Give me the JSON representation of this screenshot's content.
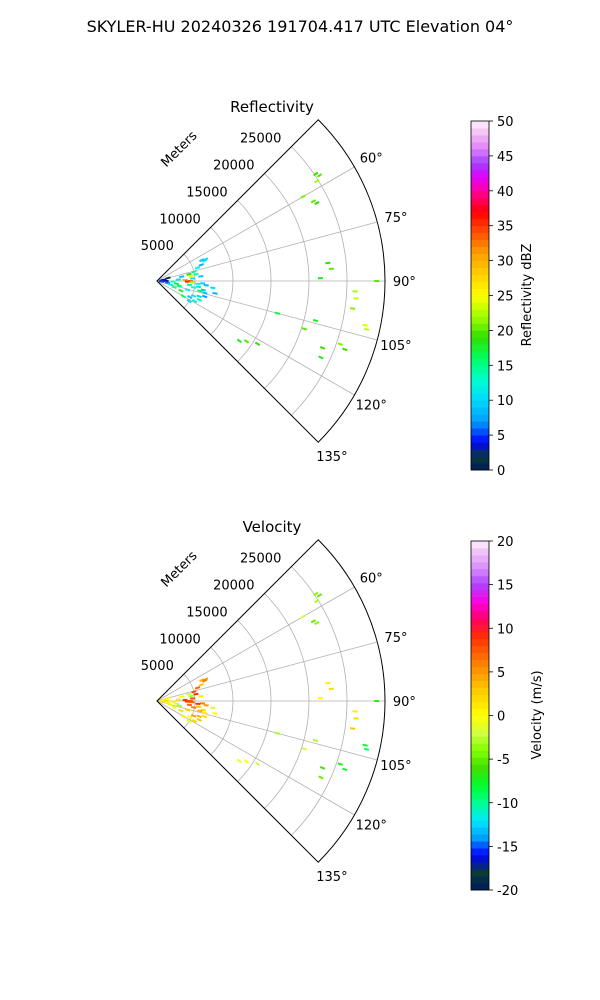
{
  "suptitle": "SKYLER-HU  20240326  191704.417 UTC Elevation 04°",
  "chart_data": [
    {
      "type": "polar-sector",
      "title": "Reflectivity",
      "range_label": "Meters",
      "range_ticks": [
        5000,
        10000,
        15000,
        20000,
        25000
      ],
      "range_max": 30000,
      "azimuth_range_deg": [
        45,
        135
      ],
      "azimuth_ticks": [
        "60°",
        "75°",
        "90°",
        "105°",
        "120°",
        "135°"
      ],
      "grid": true,
      "colorbar": {
        "label": "Reflectivity dBZ",
        "min": 0,
        "max": 50,
        "ticks": [
          0,
          5,
          10,
          15,
          20,
          25,
          30,
          35,
          40,
          45,
          50
        ],
        "stops": [
          {
            "v": 0,
            "c": "#001a5c"
          },
          {
            "v": 2,
            "c": "#0a3a3a"
          },
          {
            "v": 4,
            "c": "#0000ff"
          },
          {
            "v": 7,
            "c": "#00a0ff"
          },
          {
            "v": 10,
            "c": "#00d8ff"
          },
          {
            "v": 13,
            "c": "#00ffd0"
          },
          {
            "v": 16,
            "c": "#00ff60"
          },
          {
            "v": 19,
            "c": "#30e000"
          },
          {
            "v": 22,
            "c": "#a0ff00"
          },
          {
            "v": 25,
            "c": "#ffff00"
          },
          {
            "v": 28,
            "c": "#ffd000"
          },
          {
            "v": 31,
            "c": "#ffa000"
          },
          {
            "v": 34,
            "c": "#ff5000"
          },
          {
            "v": 37,
            "c": "#ff0000"
          },
          {
            "v": 40,
            "c": "#ff00a0"
          },
          {
            "v": 42,
            "c": "#e000ff"
          },
          {
            "v": 44,
            "c": "#a040ff"
          },
          {
            "v": 46,
            "c": "#e080ff"
          },
          {
            "v": 48,
            "c": "#f0b8f0"
          },
          {
            "v": 50,
            "c": "#fff0ff"
          }
        ]
      },
      "points": [
        {
          "az": 56,
          "r": 25200,
          "v": 19
        },
        {
          "az": 57,
          "r": 25500,
          "v": 20
        },
        {
          "az": 58,
          "r": 24800,
          "v": 22
        },
        {
          "az": 63,
          "r": 23100,
          "v": 20
        },
        {
          "az": 64,
          "r": 23400,
          "v": 19
        },
        {
          "az": 60,
          "r": 22200,
          "v": 21
        },
        {
          "az": 84,
          "r": 22600,
          "v": 19
        },
        {
          "az": 86,
          "r": 23000,
          "v": 20
        },
        {
          "az": 89,
          "r": 21500,
          "v": 18
        },
        {
          "az": 93,
          "r": 26100,
          "v": 22
        },
        {
          "az": 95,
          "r": 26300,
          "v": 23
        },
        {
          "az": 98,
          "r": 26000,
          "v": 21
        },
        {
          "az": 102,
          "r": 28000,
          "v": 24
        },
        {
          "az": 103,
          "r": 28300,
          "v": 23
        },
        {
          "az": 90,
          "r": 28900,
          "v": 20
        },
        {
          "az": 104,
          "r": 21500,
          "v": 18
        },
        {
          "az": 108,
          "r": 20400,
          "v": 20
        },
        {
          "az": 112,
          "r": 23500,
          "v": 19
        },
        {
          "az": 115,
          "r": 23800,
          "v": 18
        },
        {
          "az": 109,
          "r": 25500,
          "v": 21
        },
        {
          "az": 110,
          "r": 26300,
          "v": 19
        },
        {
          "az": 105,
          "r": 16400,
          "v": 17
        },
        {
          "az": 122,
          "r": 15600,
          "v": 19
        },
        {
          "az": 124,
          "r": 14200,
          "v": 20
        },
        {
          "az": 126,
          "r": 13400,
          "v": 18
        },
        {
          "az": 65,
          "r": 6500,
          "v": 9
        },
        {
          "az": 66,
          "r": 7000,
          "v": 10
        },
        {
          "az": 67,
          "r": 6800,
          "v": 11
        },
        {
          "az": 70,
          "r": 6200,
          "v": 8
        },
        {
          "az": 72,
          "r": 5600,
          "v": 12
        },
        {
          "az": 76,
          "r": 5000,
          "v": 15
        },
        {
          "az": 78,
          "r": 4300,
          "v": 19
        },
        {
          "az": 80,
          "r": 5200,
          "v": 14
        },
        {
          "az": 82,
          "r": 4500,
          "v": 24
        },
        {
          "az": 84,
          "r": 5800,
          "v": 9
        },
        {
          "az": 86,
          "r": 4700,
          "v": 11
        },
        {
          "az": 88,
          "r": 3700,
          "v": 30
        },
        {
          "az": 90,
          "r": 4400,
          "v": 33
        },
        {
          "az": 91,
          "r": 4000,
          "v": 36
        },
        {
          "az": 92,
          "r": 4600,
          "v": 22
        },
        {
          "az": 93,
          "r": 6000,
          "v": 10
        },
        {
          "az": 94,
          "r": 5400,
          "v": 12
        },
        {
          "az": 95,
          "r": 6500,
          "v": 8
        },
        {
          "az": 97,
          "r": 4300,
          "v": 15
        },
        {
          "az": 98,
          "r": 5500,
          "v": 11
        },
        {
          "az": 100,
          "r": 4900,
          "v": 13
        },
        {
          "az": 101,
          "r": 6200,
          "v": 9
        },
        {
          "az": 103,
          "r": 5800,
          "v": 17
        },
        {
          "az": 104,
          "r": 6500,
          "v": 9
        },
        {
          "az": 106,
          "r": 4200,
          "v": 12
        },
        {
          "az": 108,
          "r": 6600,
          "v": 7
        },
        {
          "az": 110,
          "r": 5900,
          "v": 10
        },
        {
          "az": 112,
          "r": 5200,
          "v": 11
        },
        {
          "az": 114,
          "r": 6100,
          "v": 14
        },
        {
          "az": 116,
          "r": 4800,
          "v": 9
        },
        {
          "az": 118,
          "r": 5600,
          "v": 12
        },
        {
          "az": 120,
          "r": 4000,
          "v": 16
        },
        {
          "az": 122,
          "r": 5000,
          "v": 10
        },
        {
          "az": 102,
          "r": 7800,
          "v": 8
        },
        {
          "az": 97,
          "r": 7400,
          "v": 10
        },
        {
          "az": 75,
          "r": 1500,
          "v": 2
        },
        {
          "az": 80,
          "r": 900,
          "v": 4
        },
        {
          "az": 85,
          "r": 700,
          "v": 1
        },
        {
          "az": 90,
          "r": 1200,
          "v": 3
        },
        {
          "az": 95,
          "r": 600,
          "v": 5
        },
        {
          "az": 100,
          "r": 1400,
          "v": 6
        },
        {
          "az": 105,
          "r": 1800,
          "v": 12
        },
        {
          "az": 110,
          "r": 2400,
          "v": 14
        },
        {
          "az": 98,
          "r": 2600,
          "v": 17
        },
        {
          "az": 92,
          "r": 2100,
          "v": 13
        },
        {
          "az": 112,
          "r": 3400,
          "v": 18
        },
        {
          "az": 102,
          "r": 3000,
          "v": 15
        },
        {
          "az": 86,
          "r": 2800,
          "v": 11
        },
        {
          "az": 80,
          "r": 3300,
          "v": 9
        }
      ]
    },
    {
      "type": "polar-sector",
      "title": "Velocity",
      "range_label": "Meters",
      "range_ticks": [
        5000,
        10000,
        15000,
        20000,
        25000
      ],
      "range_max": 30000,
      "azimuth_range_deg": [
        45,
        135
      ],
      "azimuth_ticks": [
        "60°",
        "75°",
        "90°",
        "105°",
        "120°",
        "135°"
      ],
      "grid": true,
      "colorbar": {
        "label": "Velocity (m/s)",
        "min": -20,
        "max": 20,
        "ticks": [
          -20,
          -15,
          -10,
          -5,
          0,
          5,
          10,
          15,
          20
        ],
        "stops": [
          {
            "v": -20,
            "c": "#001a5c"
          },
          {
            "v": -18,
            "c": "#0a3a3a"
          },
          {
            "v": -16,
            "c": "#0000ff"
          },
          {
            "v": -14,
            "c": "#00a0ff"
          },
          {
            "v": -12,
            "c": "#00e8ff"
          },
          {
            "v": -10,
            "c": "#00ff90"
          },
          {
            "v": -8,
            "c": "#00ff30"
          },
          {
            "v": -6,
            "c": "#40e000"
          },
          {
            "v": -4,
            "c": "#80ff00"
          },
          {
            "v": -2,
            "c": "#d0ff40"
          },
          {
            "v": 0,
            "c": "#ffff00"
          },
          {
            "v": 3,
            "c": "#ffc800"
          },
          {
            "v": 6,
            "c": "#ff8000"
          },
          {
            "v": 9,
            "c": "#ff3000"
          },
          {
            "v": 11,
            "c": "#ff0060"
          },
          {
            "v": 13,
            "c": "#ff00e0"
          },
          {
            "v": 15,
            "c": "#b040ff"
          },
          {
            "v": 17,
            "c": "#d890ff"
          },
          {
            "v": 19,
            "c": "#f4c8f4"
          },
          {
            "v": 20,
            "c": "#fff0ff"
          }
        ]
      },
      "points": [
        {
          "az": 56,
          "r": 25200,
          "v": -4
        },
        {
          "az": 57,
          "r": 25500,
          "v": -5
        },
        {
          "az": 58,
          "r": 24800,
          "v": -3
        },
        {
          "az": 63,
          "r": 23100,
          "v": -5
        },
        {
          "az": 64,
          "r": 23400,
          "v": -4
        },
        {
          "az": 60,
          "r": 22200,
          "v": -2
        },
        {
          "az": 84,
          "r": 22600,
          "v": 1
        },
        {
          "az": 86,
          "r": 23000,
          "v": 2
        },
        {
          "az": 89,
          "r": 21500,
          "v": 0
        },
        {
          "az": 93,
          "r": 26100,
          "v": 1
        },
        {
          "az": 95,
          "r": 26300,
          "v": 2
        },
        {
          "az": 98,
          "r": 26000,
          "v": 3
        },
        {
          "az": 102,
          "r": 28000,
          "v": -8
        },
        {
          "az": 103,
          "r": 28300,
          "v": -9
        },
        {
          "az": 90,
          "r": 28900,
          "v": -7
        },
        {
          "az": 104,
          "r": 21500,
          "v": -3
        },
        {
          "az": 108,
          "r": 20400,
          "v": -2
        },
        {
          "az": 112,
          "r": 23500,
          "v": -6
        },
        {
          "az": 115,
          "r": 23800,
          "v": -5
        },
        {
          "az": 109,
          "r": 25500,
          "v": -7
        },
        {
          "az": 110,
          "r": 26300,
          "v": -8
        },
        {
          "az": 105,
          "r": 16400,
          "v": -3
        },
        {
          "az": 122,
          "r": 15600,
          "v": -2
        },
        {
          "az": 124,
          "r": 14200,
          "v": 0
        },
        {
          "az": 126,
          "r": 13400,
          "v": -1
        },
        {
          "az": 65,
          "r": 6500,
          "v": 4
        },
        {
          "az": 66,
          "r": 7000,
          "v": 5
        },
        {
          "az": 67,
          "r": 6800,
          "v": 6
        },
        {
          "az": 70,
          "r": 6200,
          "v": 3
        },
        {
          "az": 72,
          "r": 5600,
          "v": 7
        },
        {
          "az": 76,
          "r": 5000,
          "v": 8
        },
        {
          "az": 78,
          "r": 4300,
          "v": -2
        },
        {
          "az": 80,
          "r": 5200,
          "v": 9
        },
        {
          "az": 82,
          "r": 4500,
          "v": -3
        },
        {
          "az": 84,
          "r": 5800,
          "v": 1
        },
        {
          "az": 86,
          "r": 4700,
          "v": 8
        },
        {
          "az": 88,
          "r": 3700,
          "v": 9
        },
        {
          "az": 90,
          "r": 4400,
          "v": 8
        },
        {
          "az": 91,
          "r": 4000,
          "v": 9
        },
        {
          "az": 92,
          "r": 4600,
          "v": 7
        },
        {
          "az": 93,
          "r": 6000,
          "v": 6
        },
        {
          "az": 94,
          "r": 5400,
          "v": 9
        },
        {
          "az": 95,
          "r": 6500,
          "v": 5
        },
        {
          "az": 97,
          "r": 4300,
          "v": 7
        },
        {
          "az": 98,
          "r": 5500,
          "v": 3
        },
        {
          "az": 100,
          "r": 4900,
          "v": 6
        },
        {
          "az": 101,
          "r": 6200,
          "v": 2
        },
        {
          "az": 103,
          "r": 5800,
          "v": 4
        },
        {
          "az": 104,
          "r": 6500,
          "v": 1
        },
        {
          "az": 106,
          "r": 4200,
          "v": 3
        },
        {
          "az": 108,
          "r": 6600,
          "v": 2
        },
        {
          "az": 110,
          "r": 5900,
          "v": 4
        },
        {
          "az": 112,
          "r": 5200,
          "v": 5
        },
        {
          "az": 114,
          "r": 6100,
          "v": 3
        },
        {
          "az": 116,
          "r": 4800,
          "v": 0
        },
        {
          "az": 118,
          "r": 5600,
          "v": 2
        },
        {
          "az": 120,
          "r": 4000,
          "v": 1
        },
        {
          "az": 122,
          "r": 5000,
          "v": -1
        },
        {
          "az": 102,
          "r": 7800,
          "v": 0
        },
        {
          "az": 97,
          "r": 7400,
          "v": -2
        },
        {
          "az": 75,
          "r": 1500,
          "v": 0
        },
        {
          "az": 80,
          "r": 900,
          "v": 1
        },
        {
          "az": 85,
          "r": 700,
          "v": 0
        },
        {
          "az": 90,
          "r": 1200,
          "v": 2
        },
        {
          "az": 95,
          "r": 600,
          "v": 1
        },
        {
          "az": 100,
          "r": 1400,
          "v": 0
        },
        {
          "az": 105,
          "r": 1800,
          "v": -1
        },
        {
          "az": 110,
          "r": 2400,
          "v": 0
        },
        {
          "az": 98,
          "r": 2600,
          "v": -2
        },
        {
          "az": 92,
          "r": 2100,
          "v": 1
        },
        {
          "az": 112,
          "r": 3400,
          "v": 2
        },
        {
          "az": 102,
          "r": 3000,
          "v": -3
        },
        {
          "az": 86,
          "r": 2800,
          "v": 1
        },
        {
          "az": 80,
          "r": 3300,
          "v": 0
        }
      ]
    }
  ]
}
